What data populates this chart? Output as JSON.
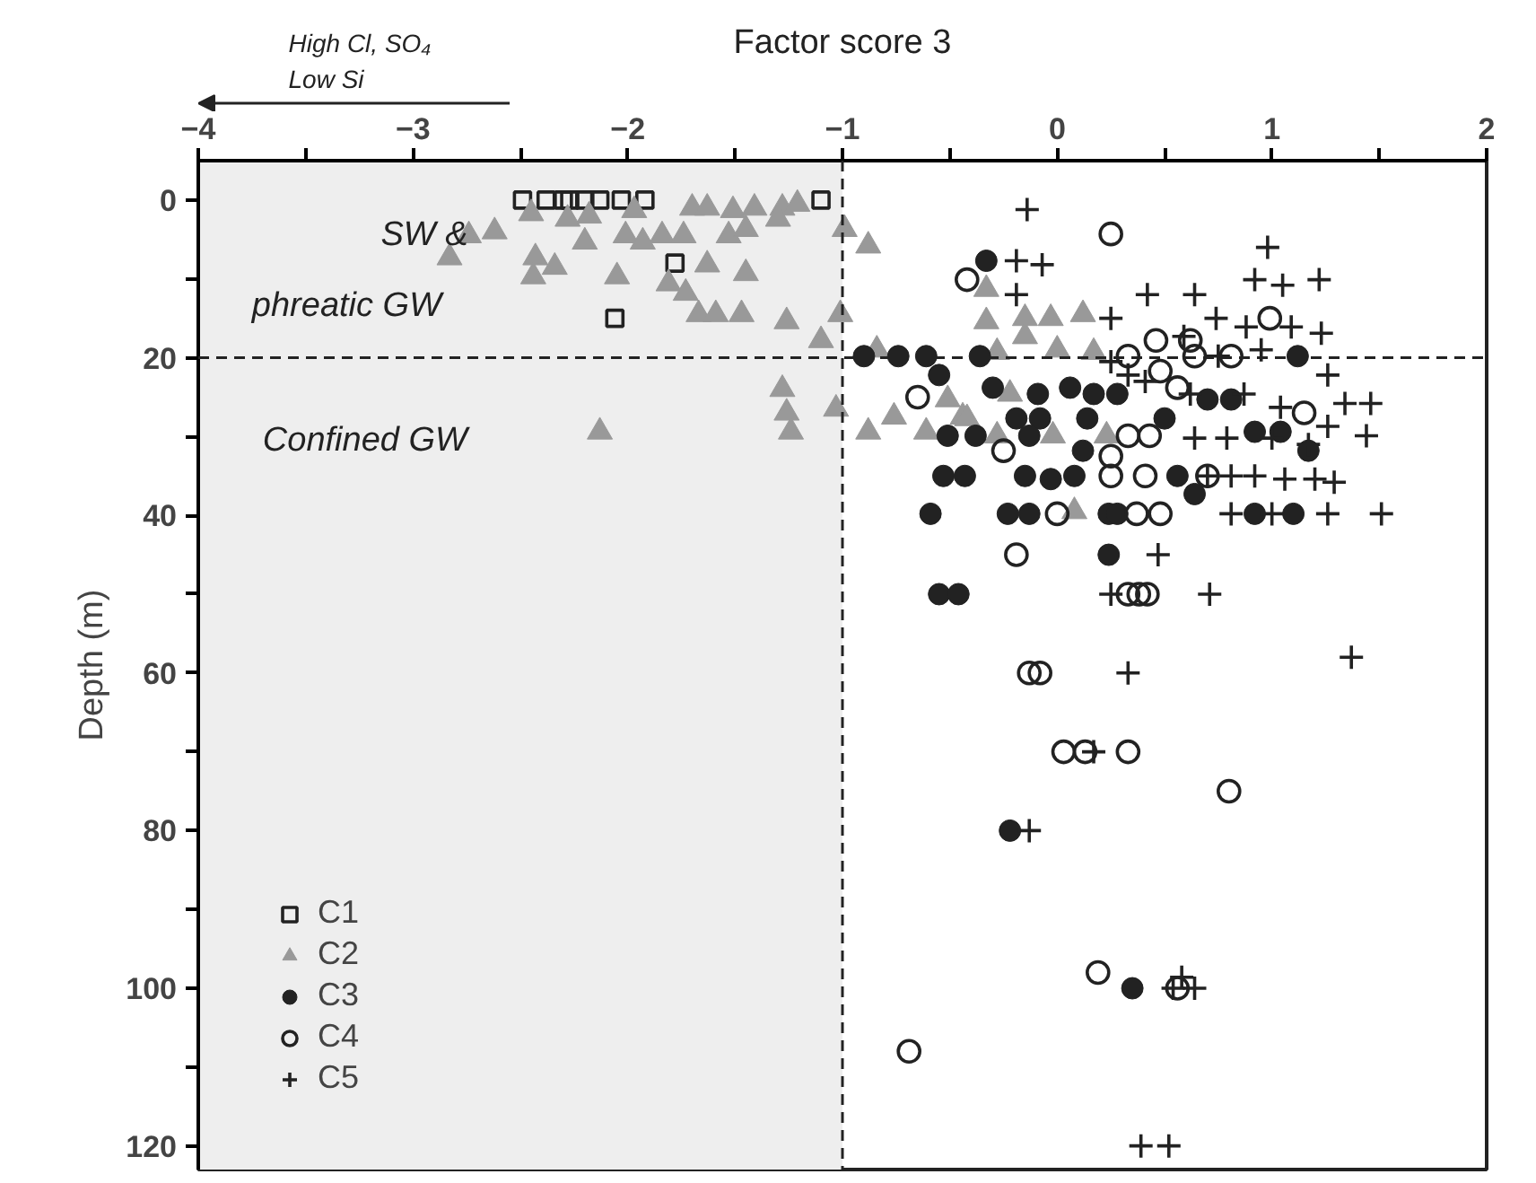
{
  "chart_data": {
    "type": "scatter",
    "xlabel": "Factor score 3",
    "ylabel": "Depth (m)",
    "xlim": [
      -4,
      2
    ],
    "ylim": [
      123,
      -5
    ],
    "xticks": [
      -4,
      {
        "value": -3.5,
        "label": null
      },
      -3,
      {
        "value": -2.5,
        "label": null
      },
      -2,
      {
        "value": -1.5,
        "label": null
      },
      -1,
      {
        "value": -0.5,
        "label": null
      },
      0,
      {
        "value": 0.5,
        "label": null
      },
      1,
      {
        "value": 1.5,
        "label": null
      },
      2
    ],
    "yticks": [
      0,
      {
        "value": 10,
        "label": null
      },
      20,
      {
        "value": 30,
        "label": null
      },
      40,
      {
        "value": 50,
        "label": null
      },
      60,
      {
        "value": 70,
        "label": null
      },
      80,
      {
        "value": 90,
        "label": null
      },
      100,
      {
        "value": 110,
        "label": null
      },
      120
    ],
    "grid": false,
    "legend": "bottom left",
    "annotations": [
      "High Cl, SO₄",
      "Low Si",
      "SW & phreatic GW",
      "Confined GW"
    ],
    "ref_lines": [
      {
        "axis": "x",
        "value": -1,
        "line_style": "dashed",
        "color": "#222222"
      },
      {
        "axis": "y",
        "value": 20,
        "line_style": "dashed",
        "color": "#222222"
      }
    ],
    "bands": [
      {
        "axis": "x",
        "from": -4,
        "to": -1,
        "color": "#eeeeee"
      }
    ],
    "series": [
      {
        "name": "C1",
        "color": "#222222",
        "marker": "square_open",
        "x": [
          -2.49,
          -2.38,
          -2.3,
          -2.27,
          -2.2,
          -2.13,
          -2.03,
          -1.92,
          -1.1,
          -1.78,
          -2.06
        ],
        "values": [
          0,
          0,
          0,
          0,
          0,
          0,
          0,
          0,
          0,
          8,
          15
        ]
      },
      {
        "name": "C2",
        "color": "#999999",
        "marker": "triangle",
        "x": [
          -2.83,
          -2.74,
          -2.62,
          -2.43,
          -2.44,
          -2.34,
          -2.45,
          -2.28,
          -2.18,
          -2.2,
          -2.05,
          -2.01,
          -1.93,
          -1.97,
          -1.84,
          -1.74,
          -1.7,
          -1.63,
          -1.63,
          -1.81,
          -1.73,
          -1.67,
          -1.59,
          -1.47,
          -1.51,
          -1.53,
          -1.45,
          -1.45,
          -1.41,
          -1.28,
          -1.21,
          -1.3,
          -1.26,
          -1.1,
          -1.01,
          -0.99,
          -0.88,
          -1.28,
          -1.26,
          -1.24,
          -1.03,
          -2.13,
          -0.88,
          -0.76,
          -0.84,
          -0.61,
          -0.44,
          -0.33,
          -0.33,
          -0.15,
          -0.03,
          0.12,
          -0.15,
          0.0,
          -0.28,
          0.17,
          -0.51,
          -0.22,
          -0.42,
          -0.28,
          -0.02,
          0.23,
          0.08
        ],
        "values": [
          7.3,
          4.5,
          4,
          7.3,
          9.7,
          8.5,
          1.7,
          2.4,
          2,
          5.3,
          9.7,
          4.5,
          5.3,
          1.3,
          4.5,
          4.5,
          1,
          1,
          8.2,
          10.6,
          11.8,
          14.5,
          14.5,
          14.5,
          1.3,
          4.5,
          3.7,
          9.3,
          1,
          1,
          0.5,
          2.4,
          15.4,
          17.8,
          14.5,
          3.7,
          5.8,
          24,
          27,
          29.4,
          26.5,
          29.4,
          29.4,
          27.5,
          19,
          29.4,
          27.5,
          11.3,
          15.4,
          15,
          15,
          14.5,
          17.3,
          19,
          19.3,
          19.3,
          25.3,
          24.6,
          27.7,
          29.9,
          29.9,
          29.9,
          39.5
        ]
      },
      {
        "name": "C3",
        "color": "#222222",
        "marker": "circle",
        "x": [
          -0.33,
          -0.9,
          -0.74,
          -0.61,
          -0.36,
          -0.55,
          -0.3,
          -0.09,
          0.06,
          0.17,
          0.28,
          -0.19,
          -0.08,
          0.14,
          -0.51,
          -0.38,
          -0.13,
          0.12,
          -0.53,
          -0.43,
          -0.15,
          -0.03,
          0.08,
          -0.59,
          -0.23,
          -0.13,
          0.24,
          0.28,
          0.56,
          0.64,
          0.5,
          0.7,
          0.81,
          0.92,
          1.12,
          1.04,
          1.17,
          0.92,
          1.1,
          -0.55,
          -0.46,
          0.24,
          -0.22,
          0.35
        ],
        "values": [
          7.7,
          19.8,
          19.8,
          19.8,
          19.8,
          22.2,
          23.8,
          24.6,
          23.8,
          24.6,
          24.6,
          27.7,
          27.7,
          27.7,
          29.9,
          29.9,
          29.9,
          31.8,
          35,
          35,
          35,
          35.4,
          35,
          39.8,
          39.8,
          39.8,
          39.8,
          39.8,
          35,
          37.3,
          27.7,
          25.3,
          25.3,
          29.4,
          19.8,
          29.4,
          31.8,
          39.8,
          39.8,
          50,
          50,
          45,
          80,
          100
        ]
      },
      {
        "name": "C4",
        "color": "#222222",
        "marker": "circle_open",
        "x": [
          0.25,
          -0.42,
          -0.65,
          -0.25,
          0.33,
          0.46,
          0.62,
          0.48,
          0.56,
          0.64,
          0.99,
          0.33,
          0.43,
          0.25,
          0.25,
          0.41,
          0.7,
          1.15,
          0.37,
          0.48,
          0.0,
          0.81,
          -0.19,
          -0.13,
          -0.08,
          0.03,
          0.13,
          0.33,
          0.8,
          0.19,
          -0.69,
          0.56,
          0.33,
          0.38,
          0.42
        ],
        "values": [
          4.3,
          10.1,
          25,
          31.8,
          19.8,
          17.8,
          17.8,
          21.7,
          23.8,
          19.8,
          15,
          29.9,
          29.9,
          32.5,
          35,
          35,
          35,
          27,
          39.8,
          39.8,
          39.8,
          19.8,
          45,
          60,
          60,
          70,
          70,
          70,
          75,
          98,
          108,
          100,
          50,
          50,
          50
        ]
      },
      {
        "name": "C5",
        "color": "#222222",
        "marker": "cross",
        "x": [
          -0.14,
          -0.19,
          -0.07,
          -0.19,
          0.42,
          0.64,
          0.25,
          0.74,
          0.88,
          0.98,
          0.92,
          1.05,
          1.22,
          1.23,
          1.09,
          0.59,
          0.75,
          0.95,
          1.26,
          1.34,
          1.46,
          1.44,
          1.26,
          0.25,
          0.33,
          0.62,
          0.87,
          1.04,
          0.64,
          0.79,
          1.0,
          1.17,
          0.7,
          0.81,
          0.92,
          1.06,
          1.2,
          1.29,
          0.81,
          1.0,
          1.26,
          1.51,
          0.41,
          0.47,
          0.25,
          0.71,
          0.33,
          1.37,
          0.17,
          -0.13,
          0.58,
          0.54,
          0.64,
          0.39,
          0.52
        ],
        "values": [
          1.2,
          7.7,
          8.2,
          12,
          12,
          12,
          15,
          15,
          16.1,
          6,
          10.1,
          10.8,
          10.1,
          16.9,
          16.1,
          17.3,
          19.8,
          19,
          22.2,
          25.8,
          25.8,
          29.9,
          28.7,
          20.5,
          22.2,
          24.6,
          24.6,
          26.3,
          30.2,
          30.2,
          30.2,
          31,
          35,
          35,
          35,
          35.4,
          35.4,
          35.8,
          39.8,
          39.8,
          39.8,
          39.8,
          23,
          45,
          50,
          50,
          60,
          58,
          70,
          80,
          98.6,
          100,
          100,
          120,
          120
        ]
      }
    ]
  }
}
